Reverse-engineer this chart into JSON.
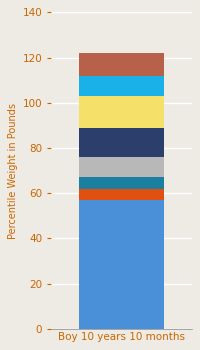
{
  "categories": [
    "Boy 10 years 10 months"
  ],
  "segments": [
    {
      "label": "base_blue",
      "value": 57.0,
      "color": "#4A90D9"
    },
    {
      "label": "orange_red",
      "value": 5.0,
      "color": "#E05010"
    },
    {
      "label": "teal",
      "value": 5.0,
      "color": "#1A7FA0"
    },
    {
      "label": "gray",
      "value": 9.0,
      "color": "#B8B8B8"
    },
    {
      "label": "dark_navy",
      "value": 13.0,
      "color": "#2C3E6B"
    },
    {
      "label": "yellow",
      "value": 14.0,
      "color": "#F5E06A"
    },
    {
      "label": "cyan_blue",
      "value": 9.0,
      "color": "#1AB0E8"
    },
    {
      "label": "brown_salmon",
      "value": 10.0,
      "color": "#B8614A"
    }
  ],
  "ylabel": "Percentile Weight in Pounds",
  "ylim": [
    0,
    140
  ],
  "yticks": [
    0,
    20,
    40,
    60,
    80,
    100,
    120,
    140
  ],
  "background_color": "#EEEAE4",
  "tick_color": "#CC6600",
  "grid_color": "#FFFFFF",
  "bar_width": 0.55,
  "figsize": [
    2.0,
    3.5
  ],
  "dpi": 100
}
